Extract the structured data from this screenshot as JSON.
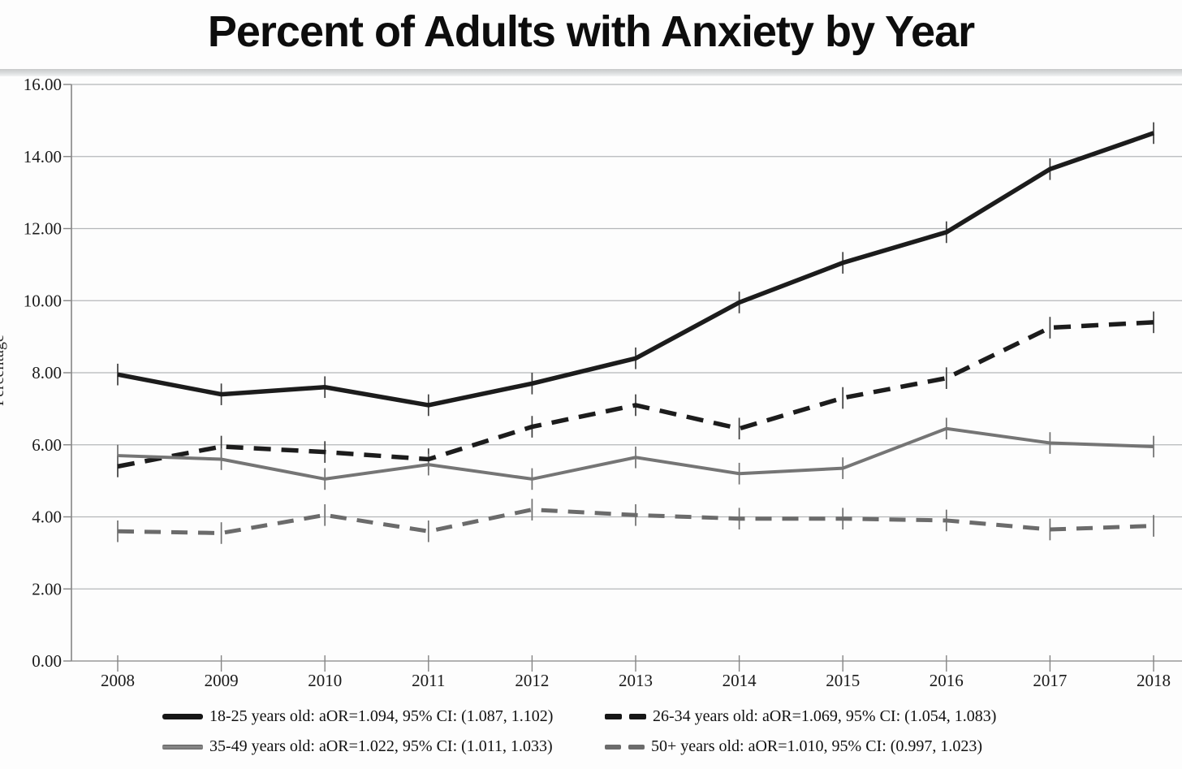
{
  "title": "Percent of Adults with Anxiety by Year",
  "chart_data": {
    "type": "line",
    "title": "Percent of Adults with Anxiety by Year",
    "xlabel": "",
    "ylabel": "Percentage",
    "ylim": [
      0,
      16
    ],
    "yticks": [
      0,
      2,
      4,
      6,
      8,
      10,
      12,
      14,
      16
    ],
    "ytick_labels": [
      "0.00",
      "2.00",
      "4.00",
      "6.00",
      "8.00",
      "10.00",
      "12.00",
      "14.00",
      "16.00"
    ],
    "x": [
      2008,
      2009,
      2010,
      2011,
      2012,
      2013,
      2014,
      2015,
      2016,
      2017,
      2018
    ],
    "grid": true,
    "legend_position": "bottom",
    "error_bar_halfwidth": 0.3,
    "colors": {
      "grid": "#b4b7b9",
      "axis": "#858585",
      "tick_text": "#1a1a1a",
      "black_series": "#1c1c1c",
      "gray_series": "#757575",
      "gray_dashed_series": "#6b6b6b",
      "whisker_dark": "#3d3d3d",
      "whisker_gray": "#6f6f6f"
    },
    "series": [
      {
        "name": "18-25 years old",
        "legend": "18-25 years old: aOR=1.094, 95% CI: (1.087, 1.102)",
        "style": "solid",
        "color": "#1c1c1c",
        "stroke_width": 5.5,
        "values": [
          7.95,
          7.4,
          7.6,
          7.1,
          7.7,
          8.4,
          9.95,
          11.05,
          11.9,
          13.65,
          14.65
        ]
      },
      {
        "name": "26-34 years old",
        "legend": "26-34 years old: aOR=1.069, 95% CI: (1.054, 1.083)",
        "style": "dashed",
        "color": "#1c1c1c",
        "stroke_width": 5.5,
        "values": [
          5.4,
          5.95,
          5.8,
          5.6,
          6.5,
          7.1,
          6.45,
          7.3,
          7.85,
          9.25,
          9.4
        ]
      },
      {
        "name": "35-49 years old",
        "legend": "35-49 years old: aOR=1.022, 95% CI: (1.011, 1.033)",
        "style": "solid",
        "color": "#757575",
        "stroke_width": 4,
        "values": [
          5.7,
          5.6,
          5.05,
          5.45,
          5.05,
          5.65,
          5.2,
          5.35,
          6.45,
          6.05,
          5.95
        ]
      },
      {
        "name": "50+ years old",
        "legend": "50+ years old: aOR=1.010, 95% CI: (0.997, 1.023)",
        "style": "dashed",
        "color": "#6b6b6b",
        "stroke_width": 5,
        "values": [
          3.6,
          3.55,
          4.05,
          3.6,
          4.2,
          4.05,
          3.95,
          3.95,
          3.9,
          3.65,
          3.75
        ]
      }
    ]
  }
}
